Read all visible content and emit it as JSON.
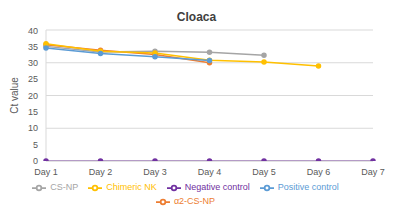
{
  "chart_data": {
    "type": "line",
    "title": "Cloaca",
    "y_label": "Ct value",
    "categories": [
      "Day 1",
      "Day 2",
      "Day 3",
      "Day 4",
      "Day 5",
      "Day 6",
      "Day 7"
    ],
    "series": [
      {
        "name": "Negative control",
        "color": "#7030a0",
        "values": [
          0,
          0,
          0,
          0,
          0,
          0,
          0
        ]
      },
      {
        "name": "α2-CS-NP",
        "color": "#ed7d31",
        "values": [
          35.5,
          33.8,
          32.5,
          30,
          null,
          null,
          null
        ]
      },
      {
        "name": "CS-NP",
        "color": "#a5a5a5",
        "values": [
          35,
          33.3,
          33.5,
          33.2,
          32.3,
          null,
          null
        ]
      },
      {
        "name": "Chimeric NK",
        "color": "#ffc000",
        "values": [
          35.8,
          33.5,
          33,
          30.8,
          30.2,
          29,
          null
        ]
      },
      {
        "name": "Positive control",
        "color": "#5b9bd5",
        "values": [
          34.5,
          32.8,
          31.8,
          30.7,
          null,
          null,
          null
        ]
      }
    ],
    "ylim": [
      0,
      40
    ],
    "yticks": [
      0,
      5,
      10,
      15,
      20,
      25,
      30,
      35,
      40
    ],
    "grid": true,
    "legend": "bottom",
    "marker": "circle"
  }
}
